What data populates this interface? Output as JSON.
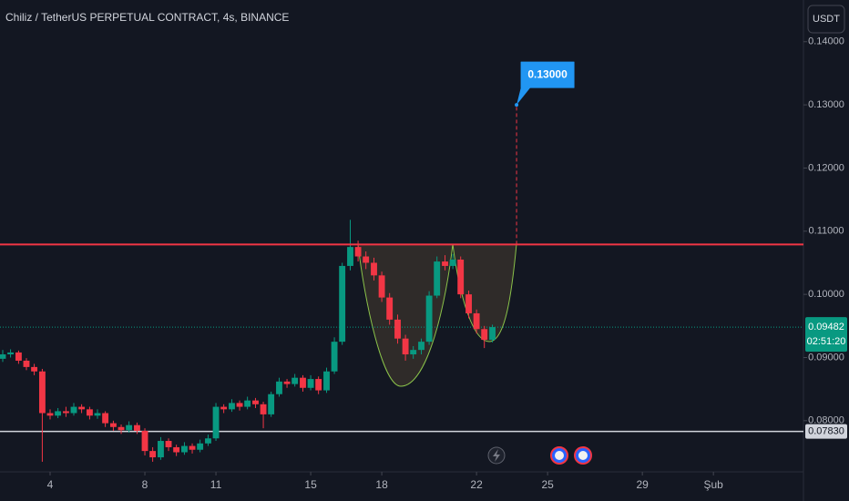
{
  "chart_data": {
    "type": "candlestick",
    "title": "Chiliz / TetherUS PERPETUAL CONTRACT, 4s, BINANCE",
    "currency": "USDT",
    "x": [
      2,
      2.33,
      2.67,
      3,
      3.33,
      3.67,
      4,
      4.33,
      4.67,
      5,
      5.33,
      5.67,
      6,
      6.33,
      6.67,
      7,
      7.33,
      7.67,
      8,
      8.33,
      8.67,
      9,
      9.33,
      9.67,
      10,
      10.33,
      10.67,
      11,
      11.33,
      11.67,
      12,
      12.33,
      12.67,
      13,
      13.33,
      13.67,
      14,
      14.33,
      14.67,
      15,
      15.33,
      15.67,
      16,
      16.33,
      16.67,
      17,
      17.33,
      17.67,
      18,
      18.33,
      18.67,
      19,
      19.33,
      19.67,
      20,
      20.33,
      20.67,
      21,
      21.33,
      21.67,
      22,
      22.33,
      22.67
    ],
    "open": [
      0.0898,
      0.0905,
      0.0908,
      0.0895,
      0.0885,
      0.0878,
      0.0812,
      0.0808,
      0.0815,
      0.0812,
      0.0822,
      0.0818,
      0.0808,
      0.0812,
      0.0796,
      0.079,
      0.0785,
      0.0793,
      0.0784,
      0.0752,
      0.0742,
      0.0768,
      0.0758,
      0.075,
      0.076,
      0.0754,
      0.0764,
      0.0772,
      0.0822,
      0.0818,
      0.0828,
      0.0822,
      0.0832,
      0.0826,
      0.081,
      0.0842,
      0.0862,
      0.0858,
      0.0868,
      0.0852,
      0.0866,
      0.0848,
      0.0878,
      0.0925,
      0.1045,
      0.1075,
      0.106,
      0.105,
      0.103,
      0.0995,
      0.096,
      0.093,
      0.0905,
      0.0912,
      0.0925,
      0.0998,
      0.1052,
      0.1045,
      0.1055,
      0.1,
      0.097,
      0.0945,
      0.0928
    ],
    "high": [
      0.0912,
      0.0913,
      0.0911,
      0.0899,
      0.089,
      0.0882,
      0.0818,
      0.082,
      0.0822,
      0.0828,
      0.0826,
      0.0822,
      0.0818,
      0.0815,
      0.08,
      0.0794,
      0.0799,
      0.0797,
      0.0788,
      0.0758,
      0.0774,
      0.0772,
      0.0762,
      0.0766,
      0.0764,
      0.077,
      0.0778,
      0.0828,
      0.0826,
      0.0834,
      0.0832,
      0.0838,
      0.0836,
      0.083,
      0.0846,
      0.0868,
      0.0866,
      0.0874,
      0.0872,
      0.0872,
      0.087,
      0.0884,
      0.0932,
      0.105,
      0.1118,
      0.1085,
      0.1068,
      0.1058,
      0.1036,
      0.1002,
      0.0968,
      0.0936,
      0.0918,
      0.093,
      0.1005,
      0.106,
      0.1062,
      0.1064,
      0.106,
      0.1006,
      0.0976,
      0.095,
      0.0952
    ],
    "low": [
      0.0893,
      0.09,
      0.089,
      0.088,
      0.0872,
      0.0735,
      0.0802,
      0.0804,
      0.0806,
      0.0808,
      0.0812,
      0.0802,
      0.0803,
      0.079,
      0.0784,
      0.0779,
      0.0781,
      0.0779,
      0.0745,
      0.0735,
      0.0738,
      0.0752,
      0.0744,
      0.0746,
      0.0748,
      0.075,
      0.076,
      0.0768,
      0.0812,
      0.0814,
      0.0816,
      0.0818,
      0.082,
      0.0788,
      0.0806,
      0.0838,
      0.0852,
      0.0854,
      0.0846,
      0.0848,
      0.0842,
      0.0844,
      0.0874,
      0.092,
      0.1038,
      0.1052,
      0.104,
      0.1022,
      0.0988,
      0.0952,
      0.0922,
      0.0895,
      0.0898,
      0.0905,
      0.092,
      0.0994,
      0.1038,
      0.104,
      0.0994,
      0.0962,
      0.0938,
      0.0915,
      0.0924
    ],
    "close": [
      0.0905,
      0.0908,
      0.0895,
      0.0885,
      0.0878,
      0.0812,
      0.0808,
      0.0815,
      0.0812,
      0.0822,
      0.0818,
      0.0808,
      0.0812,
      0.0796,
      0.079,
      0.0785,
      0.0793,
      0.0784,
      0.0752,
      0.0742,
      0.0768,
      0.0758,
      0.075,
      0.076,
      0.0754,
      0.0764,
      0.0772,
      0.0822,
      0.0818,
      0.0828,
      0.0822,
      0.0832,
      0.0826,
      0.081,
      0.0842,
      0.0862,
      0.0858,
      0.0868,
      0.0852,
      0.0866,
      0.0848,
      0.0878,
      0.0925,
      0.1045,
      0.1075,
      0.106,
      0.105,
      0.103,
      0.0995,
      0.096,
      0.093,
      0.0905,
      0.0912,
      0.0925,
      0.0998,
      0.1052,
      0.1045,
      0.1055,
      0.1,
      0.097,
      0.0945,
      0.0928,
      0.09482
    ],
    "up_color": "#089981",
    "down_color": "#f23645",
    "xlim": [
      1.885,
      35.8
    ],
    "xticks": [
      4,
      8,
      11,
      15,
      18,
      22,
      25,
      29,
      {
        "value": 32,
        "label": "Şub"
      }
    ],
    "ylim": [
      0.0719,
      0.1466
    ],
    "yticks": [
      {
        "value": 0.08,
        "label": "0.08000"
      },
      {
        "value": 0.09,
        "label": "0.09000"
      },
      {
        "value": 0.1,
        "label": "0.10000"
      },
      {
        "value": 0.11,
        "label": "0.11000"
      },
      {
        "value": 0.12,
        "label": "0.12000"
      },
      {
        "value": 0.13,
        "label": "0.13000"
      },
      {
        "value": 0.14,
        "label": "0.14000"
      }
    ],
    "resistance": {
      "value": 0.1079,
      "color": "#f23645"
    },
    "support": {
      "value": 0.0783,
      "label": "0.07830",
      "color": "#d1d4dc"
    },
    "last_price": {
      "value": 0.09482,
      "countdown": "02:51:20",
      "color": "#089981"
    },
    "target": {
      "value": 0.13,
      "label": "0.13000",
      "x": 23.69,
      "color": "#2196f3"
    }
  }
}
